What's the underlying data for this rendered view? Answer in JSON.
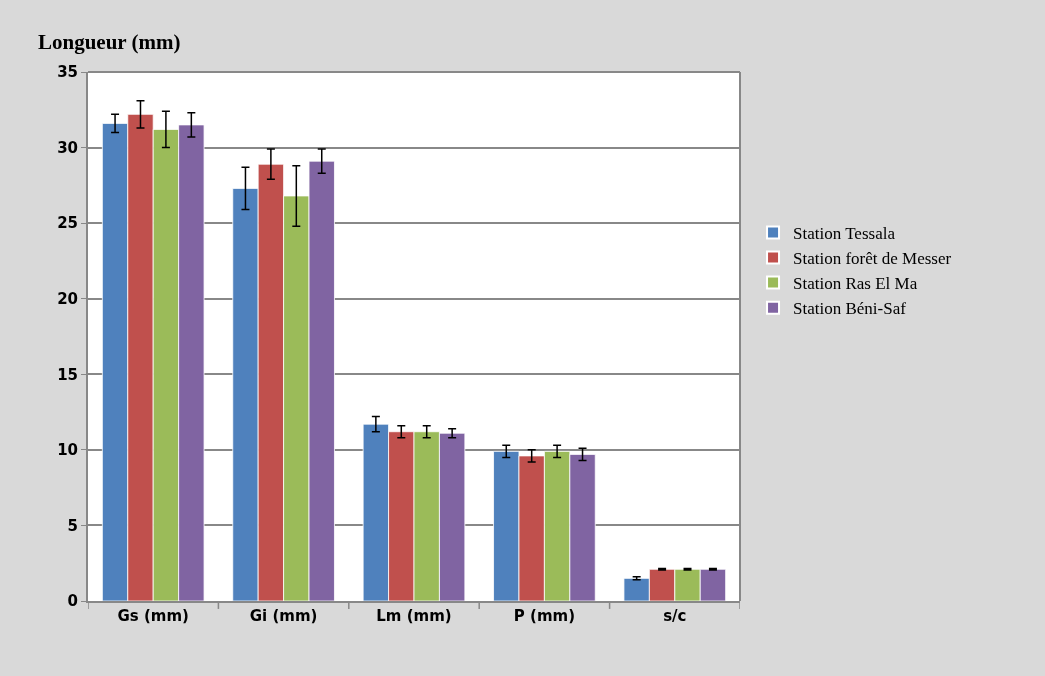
{
  "chart_data": {
    "type": "bar",
    "ylabel": "Longueur (mm)",
    "categories": [
      "Gs (mm)",
      "Gi (mm)",
      "Lm (mm)",
      "P (mm)",
      "s/c"
    ],
    "series": [
      {
        "name": "Station Tessala",
        "color": "#4f81bd",
        "values": [
          31.6,
          27.3,
          11.7,
          9.9,
          1.5
        ],
        "errors": [
          0.6,
          1.4,
          0.5,
          0.4,
          0.1
        ]
      },
      {
        "name": "Station forêt de Messer",
        "color": "#c0504d",
        "values": [
          32.2,
          28.9,
          11.2,
          9.6,
          2.1
        ],
        "errors": [
          0.9,
          1.0,
          0.4,
          0.4,
          0.05
        ]
      },
      {
        "name": "Station Ras El Ma",
        "color": "#9bbb59",
        "values": [
          31.2,
          26.8,
          11.2,
          9.9,
          2.1
        ],
        "errors": [
          1.2,
          2.0,
          0.4,
          0.4,
          0.05
        ]
      },
      {
        "name": "Station Béni-Saf",
        "color": "#8064a2",
        "values": [
          31.5,
          29.1,
          11.1,
          9.7,
          2.1
        ],
        "errors": [
          0.8,
          0.8,
          0.3,
          0.4,
          0.05
        ]
      }
    ],
    "ylim": [
      0,
      35
    ],
    "yticks": [
      0,
      5,
      10,
      15,
      20,
      25,
      30,
      35
    ],
    "grid": "y",
    "legend": "right"
  }
}
